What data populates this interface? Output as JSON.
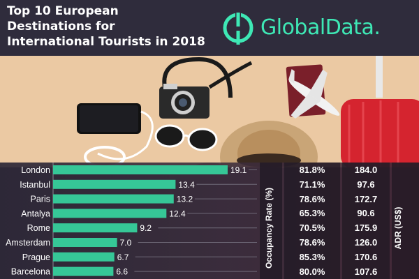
{
  "header": {
    "title_lines": [
      "Top 10 European",
      "Destinations for",
      "International Tourists in 2018"
    ],
    "brand": "GlobalData."
  },
  "colors": {
    "bar": "#36c797",
    "accent": "#3ee8b5",
    "header_bg": "#2f2c3c",
    "suitcase": "#d5242f"
  },
  "chart_data": {
    "type": "bar",
    "orientation": "horizontal",
    "title": "Top 10 European Destinations for International Tourists in 2018",
    "categories": [
      "London",
      "Istanbul",
      "Paris",
      "Antalya",
      "Rome",
      "Amsterdam",
      "Prague",
      "Barcelona"
    ],
    "values": [
      19.1,
      13.4,
      13.2,
      12.4,
      9.2,
      7.0,
      6.7,
      6.6
    ],
    "value_labels": [
      "19.1",
      "13.4",
      "13.2",
      "12.4",
      "9.2",
      "7.0",
      "6.7",
      "6.6"
    ],
    "xlim": [
      0,
      20
    ],
    "grid": false
  },
  "table": {
    "occupancy_label": "Occupancy Rate (%)",
    "adr_label": "ADR (US$)",
    "occupancy": [
      "81.8%",
      "71.1%",
      "78.6%",
      "65.3%",
      "70.5%",
      "78.6%",
      "85.3%",
      "80.0%"
    ],
    "adr": [
      "184.0",
      "97.6",
      "172.7",
      "90.6",
      "175.9",
      "126.0",
      "170.6",
      "107.6"
    ]
  }
}
